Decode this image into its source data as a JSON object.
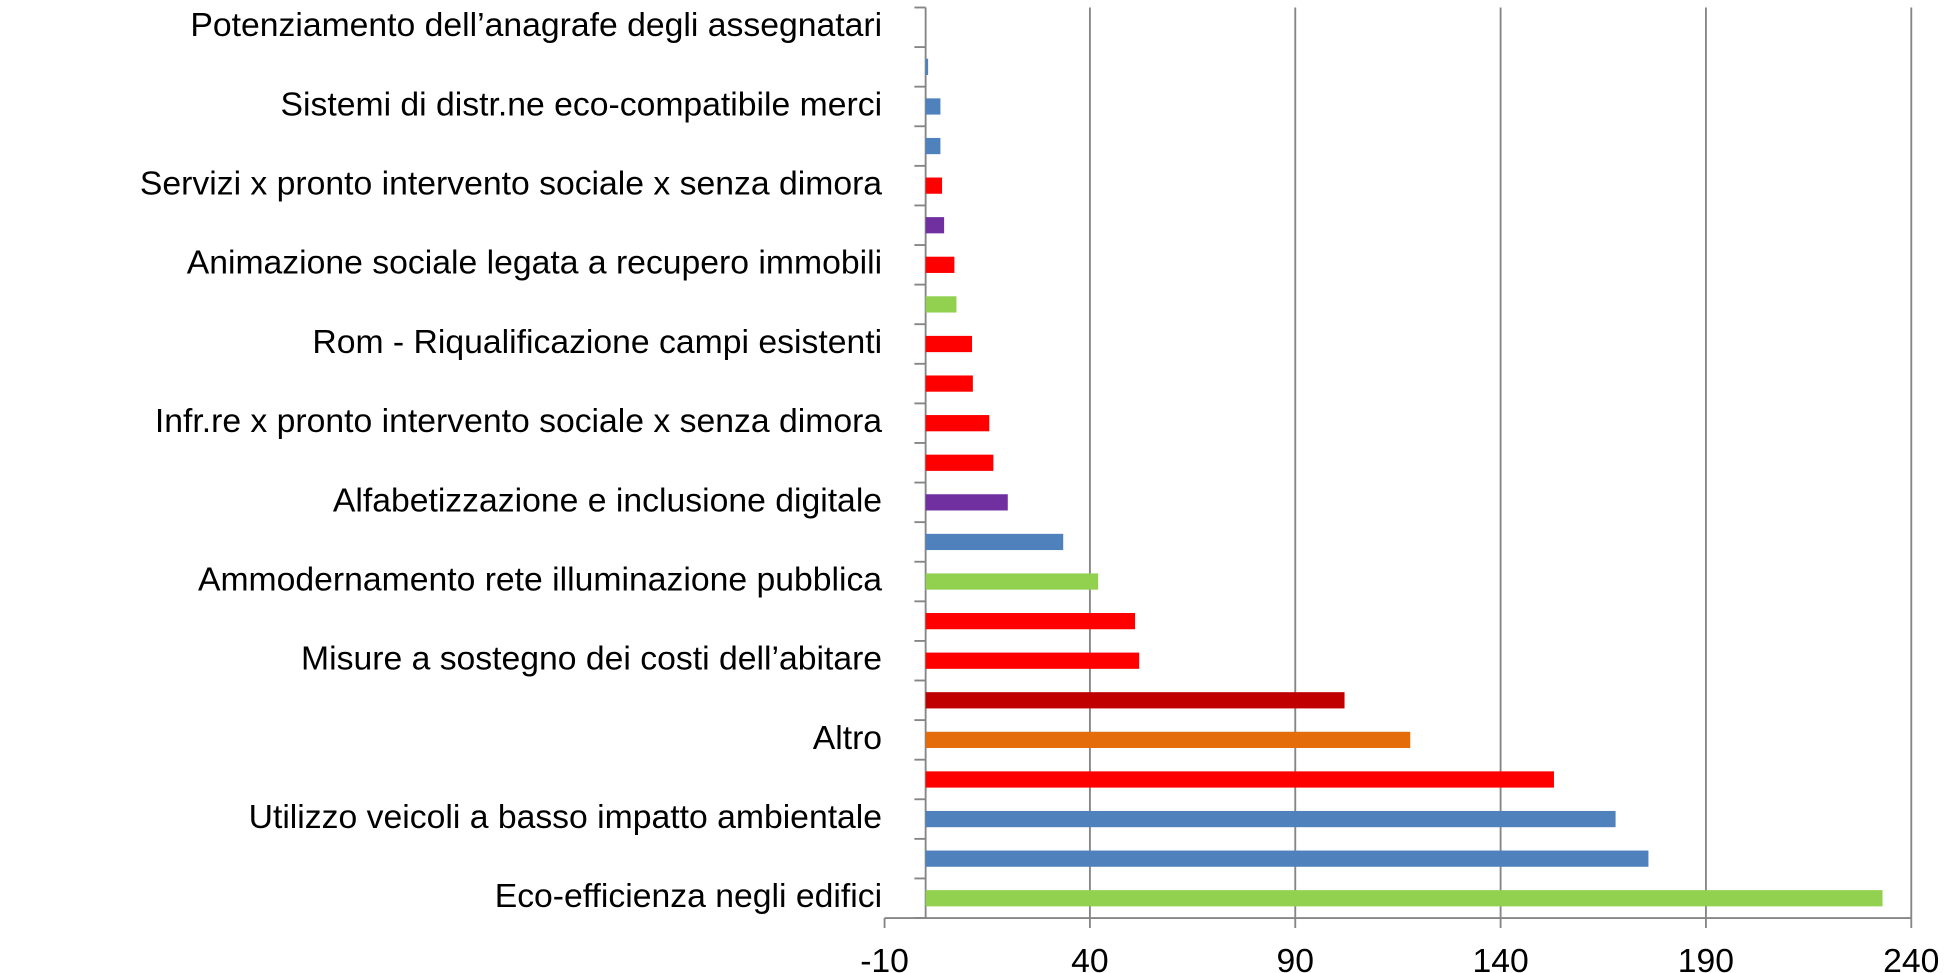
{
  "chart_data": {
    "type": "bar",
    "orientation": "horizontal",
    "categories": [
      "Eco-efficienza negli edifici",
      null,
      "Utilizzo veicoli a basso impatto ambientale",
      null,
      "Altro",
      null,
      "Misure a sostegno dei costi dell’abitare",
      null,
      "Ammodernamento rete illuminazione pubblica",
      null,
      "Alfabetizzazione e inclusione digitale",
      null,
      "Infr.re x pronto intervento sociale x senza dimora",
      null,
      "Rom - Riqualificazione campi esistenti",
      null,
      "Animazione sociale legata a recupero immobili",
      null,
      "Servizi x pronto intervento sociale x senza dimora",
      null,
      "Sistemi di distr.ne eco-compatibile merci",
      null,
      "Potenziamento dell’anagrafe degli assegnatari"
    ],
    "values": [
      233,
      176,
      168,
      153,
      118,
      102,
      52,
      51,
      42,
      33.5,
      20,
      16.5,
      15.5,
      11.5,
      11.3,
      7.5,
      7,
      4.5,
      4,
      3.6,
      3.6,
      0.6,
      0
    ],
    "colors": [
      "#92d050",
      "#4f81bd",
      "#4f81bd",
      "#ff0000",
      "#e46c0a",
      "#c00000",
      "#ff0000",
      "#ff0000",
      "#92d050",
      "#4f81bd",
      "#7030a0",
      "#ff0000",
      "#ff0000",
      "#ff0000",
      "#ff0000",
      "#92d050",
      "#ff0000",
      "#7030a0",
      "#ff0000",
      "#4f81bd",
      "#4f81bd",
      "#4f81bd",
      "#4f81bd"
    ],
    "xlim": [
      -10,
      240
    ],
    "xticks": [
      -10,
      40,
      90,
      140,
      190,
      240
    ],
    "grid": true
  }
}
